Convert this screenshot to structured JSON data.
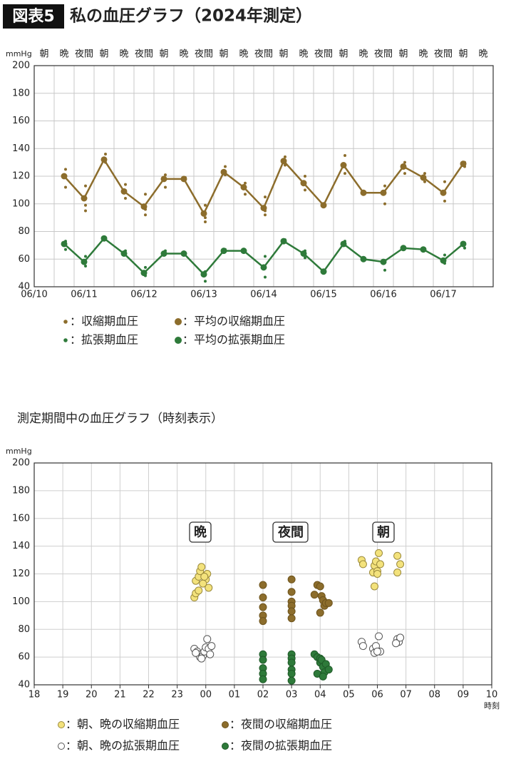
{
  "header": {
    "badge": "図表5",
    "title": "私の血圧グラフ（2024年測定）"
  },
  "chart_data": [
    {
      "type": "line",
      "y_unit": "mmHg",
      "categories": [
        "朝",
        "晩",
        "夜間",
        "朝",
        "晩",
        "夜間",
        "朝",
        "晩",
        "夜間",
        "朝",
        "晩",
        "夜間",
        "朝",
        "晩",
        "夜間",
        "朝",
        "晩",
        "夜間",
        "朝",
        "晩",
        "夜間",
        "朝",
        "晩"
      ],
      "date_labels": [
        "06/10",
        "06/11",
        "06/12",
        "06/13",
        "06/14",
        "06/15",
        "06/16",
        "06/17"
      ],
      "ylim": [
        40,
        200
      ],
      "yticks": [
        40,
        60,
        80,
        100,
        120,
        140,
        160,
        180,
        200
      ],
      "grid": true,
      "series": [
        {
          "name": "：収縮期血圧",
          "style": "dots",
          "color": "#8c6d2c",
          "values": [
            null,
            [
              125,
              112
            ],
            [
              113,
              99,
              95
            ],
            [
              136,
              130
            ],
            [
              114,
              104
            ],
            [
              107,
              96,
              92
            ],
            [
              121,
              112
            ],
            [
              119
            ],
            [
              99,
              90,
              87
            ],
            [
              127,
              121
            ],
            [
              115,
              107
            ],
            [
              105,
              95,
              92
            ],
            [
              134,
              128
            ],
            [
              120,
              110
            ],
            [
              99
            ],
            [
              135,
              122
            ],
            [
              108
            ],
            [
              113,
              100
            ],
            [
              130,
              122
            ],
            [
              122,
              116
            ],
            [
              116,
              102
            ],
            [
              130,
              127
            ],
            null
          ]
        },
        {
          "name": "：平均の収縮期血圧",
          "style": "line",
          "color": "#8c6d2c",
          "values": [
            null,
            120,
            104,
            132,
            109,
            98,
            118,
            118,
            93,
            123,
            112,
            97,
            131,
            115,
            99,
            128,
            108,
            108,
            127,
            119,
            108,
            129,
            null
          ]
        },
        {
          "name": "：拡張期血圧",
          "style": "dots",
          "color": "#2e7a3a",
          "values": [
            null,
            [
              73,
              67
            ],
            [
              62,
              55
            ],
            [
              75
            ],
            [
              66,
              63
            ],
            [
              54,
              48
            ],
            [
              66
            ],
            [
              64
            ],
            [
              51,
              44
            ],
            [
              67
            ],
            [
              66
            ],
            [
              62,
              47
            ],
            [
              74
            ],
            [
              66,
              61
            ],
            [
              51
            ],
            [
              73,
              70
            ],
            [
              60
            ],
            [
              59,
              52
            ],
            [
              68
            ],
            [
              67
            ],
            [
              63,
              57
            ],
            [
              68
            ],
            null
          ]
        },
        {
          "name": "：平均の拡張期血圧",
          "style": "line",
          "color": "#2e7a3a",
          "values": [
            null,
            71,
            58,
            75,
            64,
            50,
            64,
            64,
            49,
            66,
            66,
            54,
            73,
            64,
            51,
            71,
            60,
            58,
            68,
            67,
            59,
            71,
            null
          ]
        }
      ]
    },
    {
      "type": "scatter",
      "title": "測定期間中の血圧グラフ（時刻表示）",
      "y_unit": "mmHg",
      "x_label": "時刻",
      "annotations": [
        "晩",
        "夜間",
        "朝"
      ],
      "xlim": [
        18,
        34
      ],
      "xticks": [
        18,
        19,
        20,
        21,
        22,
        23,
        {
          "value": 24,
          "label": "00"
        },
        {
          "value": 25,
          "label": "01"
        },
        {
          "value": 26,
          "label": "02"
        },
        {
          "value": 27,
          "label": "03"
        },
        {
          "value": 28,
          "label": "04"
        },
        {
          "value": 29,
          "label": "05"
        },
        {
          "value": 30,
          "label": "06"
        },
        {
          "value": 31,
          "label": "07"
        },
        {
          "value": 32,
          "label": "08"
        },
        {
          "value": 33,
          "label": "09"
        },
        {
          "value": 34,
          "label": "10"
        }
      ],
      "ylim": [
        40,
        200
      ],
      "yticks": [
        40,
        60,
        80,
        100,
        120,
        140,
        160,
        180,
        200
      ],
      "grid": true,
      "series": [
        {
          "name": "：朝、晩の収縮期血圧",
          "color": "#f3e27c",
          "stroke": "#9b8a3c",
          "x": [
            23.65,
            23.75,
            23.8,
            23.85,
            24.0,
            24.05,
            23.9,
            24.1,
            23.6,
            23.65,
            23.75,
            23.95,
            29.45,
            29.5,
            29.85,
            29.9,
            29.95,
            30.0,
            30.05,
            30.1,
            29.9,
            30.0,
            30.7,
            30.8,
            30.7
          ],
          "values": [
            115,
            118,
            122,
            125,
            116,
            120,
            113,
            110,
            103,
            106,
            108,
            118,
            130,
            127,
            121,
            126,
            129,
            122,
            135,
            127,
            111,
            120,
            133,
            127,
            121
          ]
        },
        {
          "name": "：夜間の収縮期血圧",
          "color": "#8c6d2c",
          "stroke": "#6e541d",
          "x": [
            26.0,
            26.0,
            26.0,
            26.0,
            26.0,
            27.0,
            27.0,
            27.0,
            27.0,
            27.0,
            27.0,
            27.8,
            27.9,
            28.0,
            28.0,
            28.05,
            28.1,
            28.15,
            28.2,
            28.3
          ],
          "values": [
            112,
            103,
            96,
            90,
            86,
            116,
            107,
            100,
            97,
            93,
            88,
            105,
            112,
            111,
            92,
            104,
            101,
            97,
            99,
            99
          ]
        },
        {
          "name": "：朝、晩の拡張期血圧",
          "color": "#ffffff",
          "stroke": "#555555",
          "x": [
            23.6,
            23.7,
            23.75,
            23.8,
            23.9,
            23.95,
            24.0,
            24.05,
            24.1,
            24.15,
            23.65,
            23.85,
            24.2,
            29.45,
            29.5,
            29.85,
            29.9,
            29.95,
            30.05,
            30.1,
            30.0,
            30.7,
            30.75,
            30.8,
            30.65
          ],
          "values": [
            66,
            64,
            62,
            60,
            61,
            64,
            67,
            73,
            66,
            62,
            63,
            59,
            68,
            71,
            68,
            66,
            63,
            68,
            75,
            64,
            64,
            73,
            71,
            74,
            70
          ]
        },
        {
          "name": "：夜間の拡張期血圧",
          "color": "#2e7a3a",
          "stroke": "#1f5a28",
          "x": [
            26.0,
            26.0,
            26.0,
            26.0,
            26.0,
            27.0,
            27.0,
            27.0,
            27.0,
            27.0,
            27.0,
            27.8,
            27.9,
            28.0,
            28.0,
            28.05,
            28.1,
            28.15,
            28.2,
            28.3,
            27.9,
            28.1
          ],
          "values": [
            62,
            58,
            52,
            48,
            44,
            62,
            59,
            56,
            51,
            48,
            43,
            62,
            60,
            59,
            56,
            58,
            53,
            49,
            55,
            51,
            48,
            46
          ]
        }
      ]
    }
  ]
}
